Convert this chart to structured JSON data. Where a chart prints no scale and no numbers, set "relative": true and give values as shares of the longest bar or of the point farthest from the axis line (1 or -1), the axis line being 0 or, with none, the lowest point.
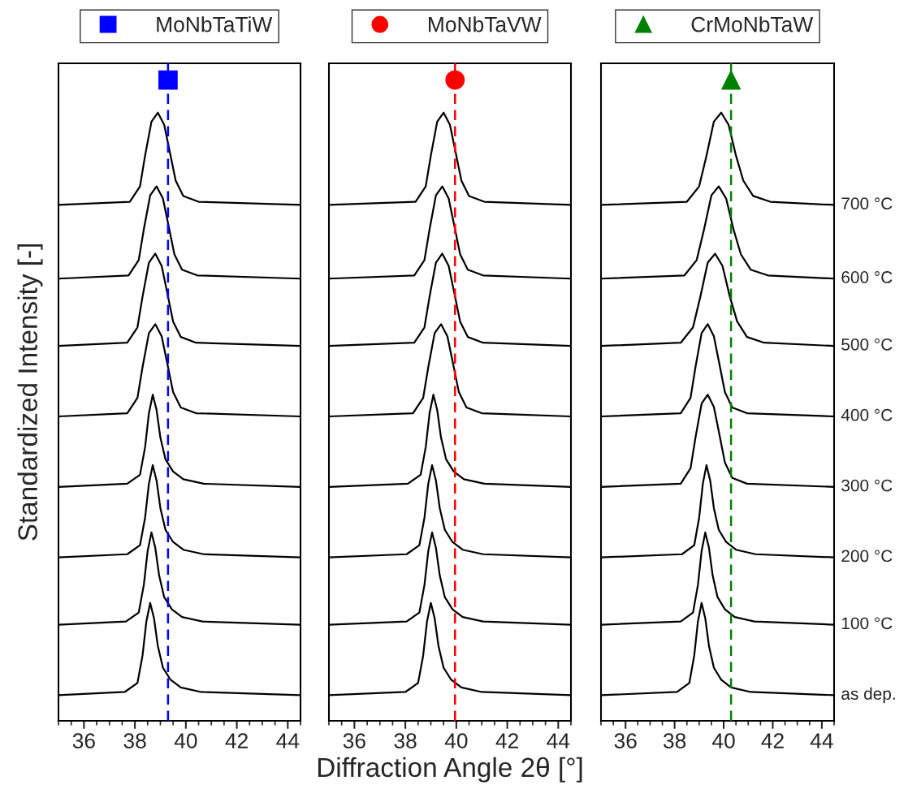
{
  "chart_data": [
    {
      "type": "line",
      "relative": true,
      "ylabel": "Standardized Intensity [-]",
      "xlim": [
        35,
        44.5
      ],
      "xticks": [
        36,
        38,
        40,
        42,
        44
      ],
      "tick_labels": "x",
      "legend": "top",
      "grid": false,
      "ref_lines": [
        {
          "axis": "x",
          "value": 39.3,
          "color": "#0000ff",
          "line_style": "dashed"
        }
      ],
      "series": [
        {
          "color": "#000000",
          "x": [
            35,
            37.6,
            38.1,
            38.3,
            38.45,
            38.6,
            38.75,
            38.9,
            39.1,
            39.4,
            39.8,
            40.6,
            44.5
          ],
          "values": [
            0.04,
            0.045,
            0.059,
            0.102,
            0.155,
            0.184,
            0.16,
            0.117,
            0.083,
            0.064,
            0.052,
            0.045,
            0.04
          ]
        },
        {
          "color": "#000000",
          "x": [
            35,
            37.65,
            38.15,
            38.35,
            38.5,
            38.65,
            38.8,
            38.95,
            39.15,
            39.45,
            39.85,
            40.65,
            44.5
          ],
          "values": [
            0.15,
            0.155,
            0.169,
            0.212,
            0.265,
            0.294,
            0.27,
            0.227,
            0.193,
            0.174,
            0.162,
            0.155,
            0.15
          ]
        },
        {
          "color": "#000000",
          "x": [
            35,
            37.7,
            38.2,
            38.4,
            38.55,
            38.7,
            38.85,
            39,
            39.2,
            39.5,
            39.9,
            40.7,
            44.5
          ],
          "values": [
            0.255,
            0.26,
            0.274,
            0.317,
            0.37,
            0.399,
            0.375,
            0.332,
            0.298,
            0.279,
            0.267,
            0.26,
            0.255
          ]
        },
        {
          "color": "#000000",
          "x": [
            35,
            37.7,
            38.2,
            38.4,
            38.55,
            38.7,
            38.85,
            39,
            39.2,
            39.5,
            39.9,
            40.7,
            44.5
          ],
          "values": [
            0.365,
            0.37,
            0.384,
            0.427,
            0.48,
            0.509,
            0.485,
            0.442,
            0.408,
            0.389,
            0.377,
            0.37,
            0.365
          ]
        },
        {
          "color": "#000000",
          "x": [
            35,
            37.7,
            38.1,
            38.3,
            38.55,
            38.8,
            39.05,
            39.3,
            39.5,
            39.8,
            40.4,
            44.5
          ],
          "values": [
            0.475,
            0.48,
            0.504,
            0.552,
            0.605,
            0.619,
            0.6,
            0.552,
            0.513,
            0.489,
            0.48,
            0.475
          ]
        },
        {
          "color": "#000000",
          "x": [
            35,
            37.7,
            38.1,
            38.3,
            38.55,
            38.8,
            39.05,
            39.3,
            39.5,
            39.8,
            40.4,
            44.5
          ],
          "values": [
            0.585,
            0.59,
            0.614,
            0.662,
            0.715,
            0.729,
            0.71,
            0.662,
            0.623,
            0.599,
            0.59,
            0.585
          ]
        },
        {
          "color": "#000000",
          "x": [
            35,
            37.75,
            38.15,
            38.35,
            38.6,
            38.85,
            39.1,
            39.35,
            39.55,
            39.85,
            40.45,
            44.5
          ],
          "values": [
            0.69,
            0.695,
            0.719,
            0.767,
            0.82,
            0.834,
            0.815,
            0.767,
            0.728,
            0.704,
            0.695,
            0.69
          ]
        },
        {
          "color": "#000000",
          "x": [
            35,
            37.8,
            38.2,
            38.4,
            38.65,
            38.9,
            39.15,
            39.4,
            39.6,
            39.9,
            40.5,
            44.5
          ],
          "values": [
            0.805,
            0.81,
            0.834,
            0.882,
            0.935,
            0.949,
            0.93,
            0.882,
            0.843,
            0.819,
            0.81,
            0.805
          ]
        },
        {
          "type": "scatter",
          "name": "MoNbTaTiW",
          "color": "#0000ff",
          "marker": "square",
          "x": [
            39.3
          ],
          "values": [
            1.0
          ]
        }
      ]
    },
    {
      "type": "line",
      "relative": true,
      "xlabel": "Diffraction Angle 2θ [°]",
      "xlim": [
        35,
        44.5
      ],
      "xticks": [
        36,
        38,
        40,
        42,
        44
      ],
      "tick_labels": "x",
      "legend": "top",
      "grid": false,
      "ref_lines": [
        {
          "axis": "x",
          "value": 39.95,
          "color": "#ff0000",
          "line_style": "dashed"
        }
      ],
      "series": [
        {
          "color": "#000000",
          "x": [
            35,
            38,
            38.5,
            38.7,
            38.85,
            39,
            39.15,
            39.3,
            39.5,
            39.8,
            40.2,
            41,
            44.5
          ],
          "values": [
            0.04,
            0.045,
            0.059,
            0.102,
            0.155,
            0.184,
            0.16,
            0.117,
            0.083,
            0.064,
            0.052,
            0.045,
            0.04
          ]
        },
        {
          "color": "#000000",
          "x": [
            35,
            38.05,
            38.55,
            38.75,
            38.9,
            39.05,
            39.2,
            39.35,
            39.55,
            39.85,
            40.25,
            41.05,
            44.5
          ],
          "values": [
            0.15,
            0.155,
            0.169,
            0.212,
            0.265,
            0.294,
            0.27,
            0.227,
            0.193,
            0.174,
            0.162,
            0.155,
            0.15
          ]
        },
        {
          "color": "#000000",
          "x": [
            35,
            38.05,
            38.55,
            38.75,
            38.9,
            39.05,
            39.2,
            39.35,
            39.55,
            39.85,
            40.25,
            41.05,
            44.5
          ],
          "values": [
            0.255,
            0.26,
            0.274,
            0.317,
            0.37,
            0.399,
            0.375,
            0.332,
            0.298,
            0.279,
            0.267,
            0.26,
            0.255
          ]
        },
        {
          "color": "#000000",
          "x": [
            35,
            38.1,
            38.6,
            38.8,
            38.95,
            39.1,
            39.25,
            39.4,
            39.6,
            39.9,
            40.3,
            41.1,
            44.5
          ],
          "values": [
            0.365,
            0.37,
            0.384,
            0.427,
            0.48,
            0.509,
            0.485,
            0.442,
            0.408,
            0.389,
            0.377,
            0.37,
            0.365
          ]
        },
        {
          "color": "#000000",
          "x": [
            35,
            38.3,
            38.7,
            38.9,
            39.15,
            39.4,
            39.65,
            39.9,
            40.1,
            40.4,
            41,
            44.5
          ],
          "values": [
            0.475,
            0.48,
            0.504,
            0.552,
            0.605,
            0.619,
            0.6,
            0.552,
            0.513,
            0.489,
            0.48,
            0.475
          ]
        },
        {
          "color": "#000000",
          "x": [
            35,
            38.35,
            38.75,
            38.95,
            39.2,
            39.45,
            39.7,
            39.95,
            40.15,
            40.45,
            41.05,
            44.5
          ],
          "values": [
            0.585,
            0.59,
            0.614,
            0.662,
            0.715,
            0.729,
            0.71,
            0.662,
            0.623,
            0.599,
            0.59,
            0.585
          ]
        },
        {
          "color": "#000000",
          "x": [
            35,
            38.35,
            38.75,
            38.95,
            39.2,
            39.45,
            39.7,
            39.95,
            40.15,
            40.45,
            41.05,
            44.5
          ],
          "values": [
            0.69,
            0.695,
            0.719,
            0.767,
            0.82,
            0.834,
            0.815,
            0.767,
            0.728,
            0.704,
            0.695,
            0.69
          ]
        },
        {
          "color": "#000000",
          "x": [
            35,
            38.4,
            38.8,
            39,
            39.25,
            39.5,
            39.75,
            40,
            40.2,
            40.5,
            41.1,
            44.5
          ],
          "values": [
            0.805,
            0.81,
            0.834,
            0.882,
            0.935,
            0.949,
            0.93,
            0.882,
            0.843,
            0.819,
            0.81,
            0.805
          ]
        },
        {
          "type": "scatter",
          "name": "MoNbTaVW",
          "color": "#ff0000",
          "marker": "circle",
          "x": [
            39.95
          ],
          "values": [
            1.0
          ]
        }
      ]
    },
    {
      "type": "line",
      "relative": true,
      "xlim": [
        35,
        44.5
      ],
      "xticks": [
        36,
        38,
        40,
        42,
        44
      ],
      "tick_labels": "x",
      "legend": "top",
      "grid": false,
      "ref_lines": [
        {
          "axis": "x",
          "value": 40.3,
          "color": "#008000",
          "line_style": "dashed"
        }
      ],
      "series": [
        {
          "name": "as dep.",
          "color": "#000000",
          "x": [
            35,
            38.1,
            38.6,
            38.8,
            38.95,
            39.1,
            39.25,
            39.4,
            39.6,
            39.9,
            40.3,
            41.1,
            44.5
          ],
          "values": [
            0.04,
            0.045,
            0.059,
            0.102,
            0.155,
            0.184,
            0.16,
            0.117,
            0.083,
            0.064,
            0.052,
            0.045,
            0.04
          ]
        },
        {
          "name": "100 °C",
          "color": "#000000",
          "x": [
            35,
            38.25,
            38.75,
            38.95,
            39.1,
            39.25,
            39.4,
            39.55,
            39.75,
            40.05,
            40.45,
            41.25,
            44.5
          ],
          "values": [
            0.15,
            0.155,
            0.169,
            0.212,
            0.265,
            0.294,
            0.27,
            0.227,
            0.193,
            0.174,
            0.162,
            0.155,
            0.15
          ]
        },
        {
          "name": "200 °C",
          "color": "#000000",
          "x": [
            35,
            38.3,
            38.8,
            39,
            39.15,
            39.3,
            39.45,
            39.6,
            39.8,
            40.1,
            40.5,
            41.3,
            44.5
          ],
          "values": [
            0.255,
            0.26,
            0.274,
            0.317,
            0.37,
            0.399,
            0.375,
            0.332,
            0.298,
            0.279,
            0.267,
            0.26,
            0.255
          ]
        },
        {
          "name": "300 °C",
          "color": "#000000",
          "x": [
            35,
            38.25,
            38.65,
            38.85,
            39.1,
            39.35,
            39.6,
            39.85,
            40.05,
            40.35,
            40.95,
            44.5
          ],
          "values": [
            0.365,
            0.37,
            0.394,
            0.442,
            0.495,
            0.509,
            0.49,
            0.442,
            0.403,
            0.379,
            0.37,
            0.365
          ]
        },
        {
          "name": "400 °C",
          "color": "#000000",
          "x": [
            35,
            38.25,
            38.65,
            38.85,
            39.1,
            39.35,
            39.6,
            39.85,
            40.05,
            40.35,
            40.95,
            44.5
          ],
          "values": [
            0.475,
            0.48,
            0.504,
            0.552,
            0.605,
            0.619,
            0.6,
            0.552,
            0.513,
            0.489,
            0.48,
            0.475
          ]
        },
        {
          "name": "500 °C",
          "color": "#000000",
          "x": [
            35,
            38.25,
            38.75,
            39.05,
            39.35,
            39.65,
            39.95,
            40.25,
            40.55,
            40.95,
            41.65,
            44.5
          ],
          "values": [
            0.585,
            0.59,
            0.614,
            0.662,
            0.715,
            0.729,
            0.71,
            0.662,
            0.623,
            0.599,
            0.59,
            0.585
          ]
        },
        {
          "name": "600 °C",
          "color": "#000000",
          "x": [
            35,
            38.4,
            38.9,
            39.2,
            39.5,
            39.8,
            40.1,
            40.4,
            40.7,
            41.1,
            41.8,
            44.5
          ],
          "values": [
            0.69,
            0.695,
            0.719,
            0.767,
            0.82,
            0.834,
            0.815,
            0.767,
            0.728,
            0.704,
            0.695,
            0.69
          ]
        },
        {
          "name": "700 °C",
          "color": "#000000",
          "x": [
            35,
            38.5,
            39,
            39.3,
            39.6,
            39.9,
            40.2,
            40.5,
            40.8,
            41.2,
            41.9,
            44.5
          ],
          "values": [
            0.805,
            0.81,
            0.834,
            0.882,
            0.935,
            0.949,
            0.93,
            0.882,
            0.843,
            0.819,
            0.81,
            0.805
          ]
        },
        {
          "type": "scatter",
          "name": "CrMoNbTaW",
          "color": "#008000",
          "marker": "triangle",
          "x": [
            40.3
          ],
          "values": [
            1.0
          ]
        }
      ]
    }
  ]
}
